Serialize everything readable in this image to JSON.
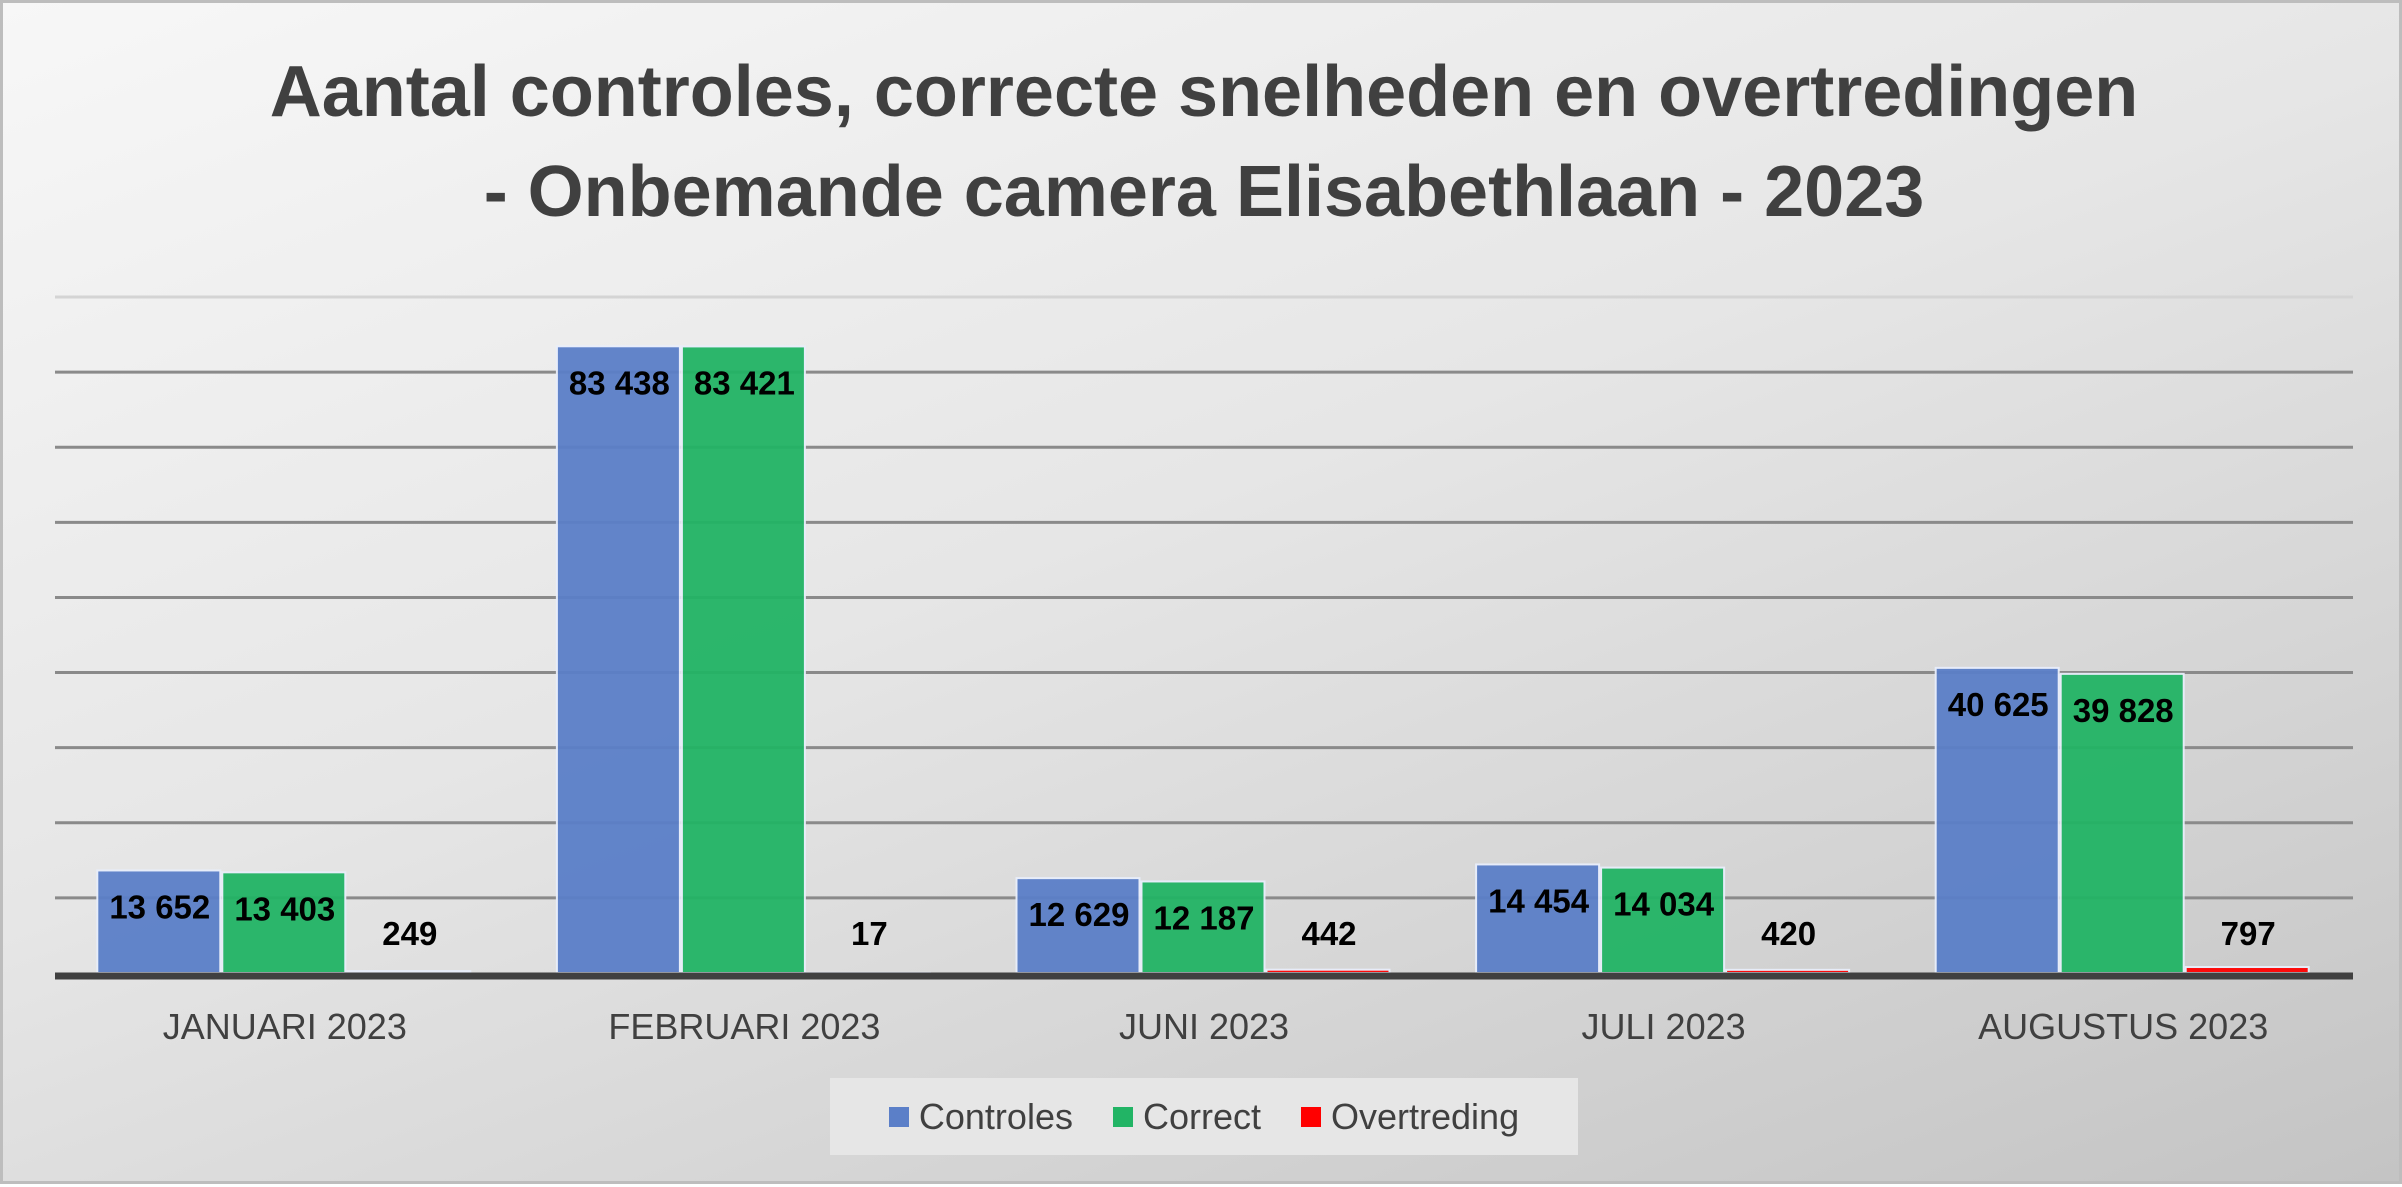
{
  "chart_data": {
    "type": "bar",
    "title": "Aantal controles, correcte snelheden en overtredingen",
    "subtitle": "- Onbemande camera Elisabethlaan - 2023",
    "categories": [
      "JANUARI 2023",
      "FEBRUARI 2023",
      "JUNI 2023",
      "JULI 2023",
      "AUGUSTUS 2023"
    ],
    "series": [
      {
        "name": "Controles",
        "color": "#5b7fc8",
        "values": [
          13652,
          83438,
          12629,
          14454,
          40625
        ],
        "labels": [
          "13 652",
          "83 438",
          "12 629",
          "14 454",
          "40 625"
        ]
      },
      {
        "name": "Correct",
        "color": "#22b465",
        "values": [
          13403,
          83421,
          12187,
          14034,
          39828
        ],
        "labels": [
          "13 403",
          "83 421",
          "12 187",
          "14 034",
          "39 828"
        ]
      },
      {
        "name": "Overtreding",
        "color": "#ff0000",
        "values": [
          249,
          17,
          442,
          420,
          797
        ],
        "labels": [
          "249",
          "17",
          "442",
          "420",
          "797"
        ]
      }
    ],
    "xlabel": "",
    "ylabel": "",
    "ylim": [
      0,
      90000
    ],
    "ytick_step": 10000,
    "grid": true,
    "legend_position": "bottom"
  }
}
